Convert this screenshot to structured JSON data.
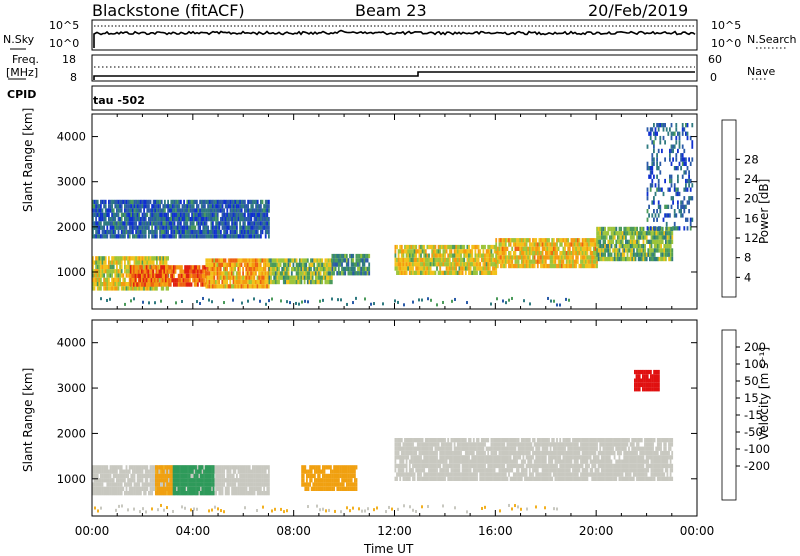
{
  "header": {
    "title": "Blackstone (fitACF)",
    "beam": "Beam 23",
    "date": "20/Feb/2019"
  },
  "strips": {
    "nsky_label": "N.Sky",
    "nsky_ticks": [
      "10^5",
      "10^0"
    ],
    "nsearch_label": "N.Search",
    "nsearch_ticks": [
      "10^5",
      "10^0"
    ],
    "freq_label": "Freq.",
    "freq_unit": "[MHz]",
    "freq_ticks": [
      "18",
      "8"
    ],
    "nave_label": "Nave",
    "nave_ticks": [
      "60",
      "0"
    ],
    "cpid_label": "CPID",
    "cpid_value": "tau -502"
  },
  "axes": {
    "xlabel": "Time UT",
    "ylabel": "Slant Range [km]",
    "x_ticks": [
      "00:00",
      "04:00",
      "08:00",
      "12:00",
      "16:00",
      "20:00",
      "00:00"
    ],
    "y_ticks": [
      "1000",
      "2000",
      "3000",
      "4000"
    ]
  },
  "colorbars": {
    "power": {
      "label": "Power [dB]",
      "ticks": [
        "4",
        "8",
        "12",
        "16",
        "20",
        "24",
        "28"
      ],
      "colors": [
        "#1030d0",
        "#2a5aa8",
        "#2f7a80",
        "#4a9a5a",
        "#9cc43a",
        "#f2c21a",
        "#f59a10",
        "#ee6010",
        "#e02010"
      ]
    },
    "velocity": {
      "label": "Velocity [m s⁻¹]",
      "ticks": [
        "200",
        "100",
        "50",
        "15",
        "-15",
        "-50",
        "-100",
        "-200"
      ],
      "colors": [
        "#1a3aa8",
        "#3a6ab0",
        "#2e9a5a",
        "#60c040",
        "#c8c8c0",
        "#c8c8c0",
        "#f2b020",
        "#f08010",
        "#e84010",
        "#e01010"
      ]
    }
  },
  "chart_data": [
    {
      "type": "heatmap",
      "title": "Power",
      "xlabel": "Time UT",
      "ylabel": "Slant Range [km]",
      "xlim": [
        0,
        24
      ],
      "ylim": [
        180,
        4500
      ],
      "x_unit": "hours UT",
      "colorbar_label": "Power [dB]",
      "regions": [
        {
          "x": [
            0.0,
            3.0
          ],
          "range_km": [
            650,
            1350
          ],
          "power_db": 20
        },
        {
          "x": [
            1.5,
            4.5
          ],
          "range_km": [
            750,
            1150
          ],
          "power_db": 28
        },
        {
          "x": [
            4.5,
            7.0
          ],
          "range_km": [
            700,
            1300
          ],
          "power_db": 24
        },
        {
          "x": [
            7.0,
            9.5
          ],
          "range_km": [
            750,
            1300
          ],
          "power_db": 16
        },
        {
          "x": [
            9.5,
            11.0
          ],
          "range_km": [
            1000,
            1400
          ],
          "power_db": 12
        },
        {
          "x": [
            12.0,
            16.0
          ],
          "range_km": [
            1000,
            1600
          ],
          "power_db": 20
        },
        {
          "x": [
            16.0,
            20.0
          ],
          "range_km": [
            1100,
            1750
          ],
          "power_db": 22
        },
        {
          "x": [
            20.0,
            23.0
          ],
          "range_km": [
            1300,
            2000
          ],
          "power_db": 16
        },
        {
          "x": [
            0.0,
            7.0
          ],
          "range_km": [
            1800,
            2600
          ],
          "power_db": 8
        },
        {
          "x": [
            22.0,
            23.8
          ],
          "range_km": [
            2000,
            4300
          ],
          "power_db": 8
        }
      ]
    },
    {
      "type": "heatmap",
      "title": "Velocity",
      "xlabel": "Time UT",
      "ylabel": "Slant Range [km]",
      "xlim": [
        0,
        24
      ],
      "ylim": [
        180,
        4500
      ],
      "x_unit": "hours UT",
      "colorbar_label": "Velocity [m s⁻¹]",
      "regions": [
        {
          "x": [
            0.0,
            7.0
          ],
          "range_km": [
            650,
            1300
          ],
          "velocity": 0
        },
        {
          "x": [
            2.5,
            3.2
          ],
          "range_km": [
            650,
            1300
          ],
          "velocity": -40
        },
        {
          "x": [
            3.2,
            4.8
          ],
          "range_km": [
            650,
            1300
          ],
          "velocity": 45
        },
        {
          "x": [
            8.3,
            10.5
          ],
          "range_km": [
            750,
            1300
          ],
          "velocity": -60
        },
        {
          "x": [
            12.0,
            23.0
          ],
          "range_km": [
            1000,
            1900
          ],
          "velocity": 0
        },
        {
          "x": [
            21.5,
            22.5
          ],
          "range_km": [
            3000,
            3400
          ],
          "velocity": -200
        }
      ]
    }
  ]
}
